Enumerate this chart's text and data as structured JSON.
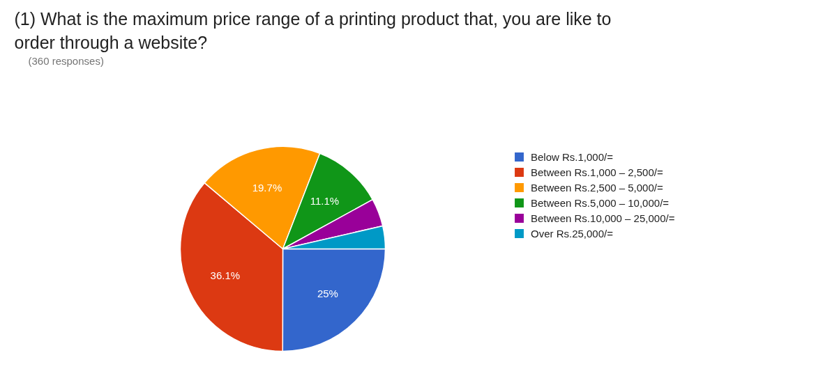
{
  "chart_data": {
    "type": "pie",
    "title": "(1) What is the maximum price range of a printing product that, you are like to order through a website?",
    "subtitle": "(360 responses)",
    "categories": [
      "Below Rs.1,000/=",
      "Between Rs.1,000 – 2,500/=",
      "Between Rs.2,500 – 5,000/=",
      "Between Rs.5,000 – 10,000/=",
      "Between Rs.10,000 – 25,000/=",
      "Over Rs.25,000/="
    ],
    "values": [
      25,
      36.1,
      19.7,
      11.1,
      4.4,
      3.6
    ],
    "value_labels": [
      "25%",
      "36.1%",
      "19.7%",
      "11.1%",
      null,
      null
    ],
    "colors": [
      "#3366cc",
      "#dc3912",
      "#ff9900",
      "#109618",
      "#990099",
      "#0099c6"
    ],
    "legend": "right"
  }
}
